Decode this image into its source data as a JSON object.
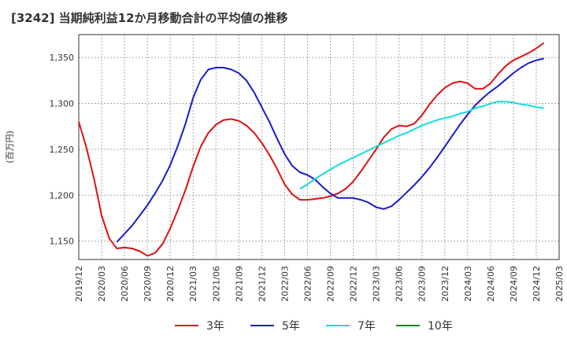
{
  "chart_data": {
    "type": "line",
    "title": "[3242]  当期純利益12か月移動合計の平均値の推移",
    "ylabel": "(百万円)",
    "xlabel": "",
    "ylim": [
      1130,
      1375
    ],
    "yticks": [
      1150,
      1200,
      1250,
      1300,
      1350
    ],
    "ytick_labels": [
      "1,150",
      "1,200",
      "1,250",
      "1,300",
      "1,350"
    ],
    "x_months": [
      "2019/12",
      "2020/01",
      "2020/02",
      "2020/03",
      "2020/04",
      "2020/05",
      "2020/06",
      "2020/07",
      "2020/08",
      "2020/09",
      "2020/10",
      "2020/11",
      "2020/12",
      "2021/01",
      "2021/02",
      "2021/03",
      "2021/04",
      "2021/05",
      "2021/06",
      "2021/07",
      "2021/08",
      "2021/09",
      "2021/10",
      "2021/11",
      "2021/12",
      "2022/01",
      "2022/02",
      "2022/03",
      "2022/04",
      "2022/05",
      "2022/06",
      "2022/07",
      "2022/08",
      "2022/09",
      "2022/10",
      "2022/11",
      "2022/12",
      "2023/01",
      "2023/02",
      "2023/03",
      "2023/04",
      "2023/05",
      "2023/06",
      "2023/07",
      "2023/08",
      "2023/09",
      "2023/10",
      "2023/11",
      "2023/12",
      "2024/01",
      "2024/02",
      "2024/03",
      "2024/04",
      "2024/05",
      "2024/06",
      "2024/07",
      "2024/08",
      "2024/09",
      "2024/10",
      "2024/11",
      "2024/12",
      "2025/01",
      "2025/02",
      "2025/03"
    ],
    "xtick_labels": [
      "2019/12",
      "2020/03",
      "2020/06",
      "2020/09",
      "2020/12",
      "2021/03",
      "2021/06",
      "2021/09",
      "2021/12",
      "2022/03",
      "2022/06",
      "2022/09",
      "2022/12",
      "2023/03",
      "2023/06",
      "2023/09",
      "2023/12",
      "2024/03",
      "2024/06",
      "2024/09",
      "2024/12",
      "2025/03"
    ],
    "grid": true,
    "legend_position": "bottom",
    "series": [
      {
        "name": "3年",
        "color": "#dd1111",
        "start": "2019/12",
        "values": [
          1280,
          1252,
          1218,
          1178,
          1153,
          1142,
          1143,
          1142,
          1139,
          1134,
          1137,
          1147,
          1164,
          1184,
          1206,
          1231,
          1253,
          1268,
          1277,
          1282,
          1283,
          1281,
          1276,
          1268,
          1257,
          1244,
          1229,
          1212,
          1201,
          1195,
          1195,
          1196,
          1197,
          1199,
          1202,
          1207,
          1215,
          1226,
          1238,
          1250,
          1263,
          1272,
          1276,
          1275,
          1278,
          1287,
          1299,
          1309,
          1317,
          1322,
          1324,
          1322,
          1316,
          1316,
          1322,
          1332,
          1341,
          1347,
          1351,
          1355,
          1360,
          1366
        ]
      },
      {
        "name": "5年",
        "color": "#1a1acc",
        "start": "2020/05",
        "values": [
          1149,
          1158,
          1167,
          1178,
          1189,
          1202,
          1216,
          1233,
          1254,
          1278,
          1306,
          1326,
          1337,
          1339,
          1339,
          1337,
          1333,
          1325,
          1312,
          1296,
          1280,
          1262,
          1245,
          1232,
          1225,
          1222,
          1217,
          1209,
          1202,
          1197,
          1197,
          1197,
          1195,
          1192,
          1187,
          1185,
          1188,
          1195,
          1203,
          1211,
          1220,
          1230,
          1241,
          1253,
          1265,
          1277,
          1288,
          1298,
          1306,
          1313,
          1319,
          1326,
          1333,
          1339,
          1344,
          1347,
          1349
        ]
      },
      {
        "name": "7年",
        "color": "#11dddd",
        "start": "2022/05",
        "values": [
          1207,
          1212,
          1218,
          1223,
          1228,
          1233,
          1237,
          1241,
          1245,
          1249,
          1253,
          1257,
          1261,
          1265,
          1268,
          1272,
          1276,
          1279,
          1282,
          1284,
          1286,
          1289,
          1291,
          1295,
          1297,
          1300,
          1302,
          1302,
          1301,
          1299,
          1298,
          1296,
          1295
        ]
      },
      {
        "name": "10年",
        "color": "#118811",
        "start": "2024/12",
        "values": []
      }
    ]
  }
}
